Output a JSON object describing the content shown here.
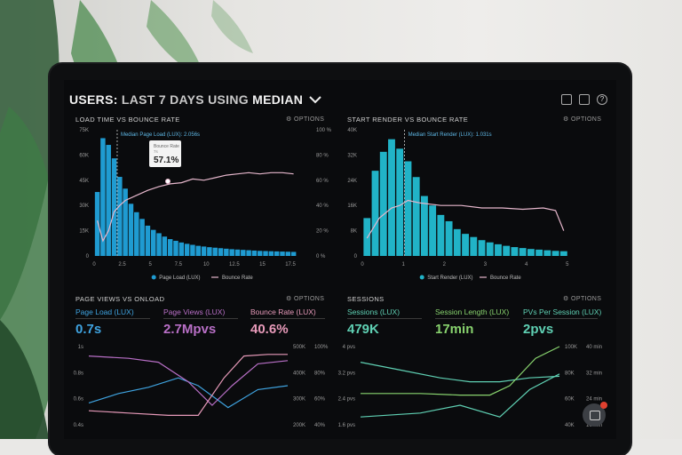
{
  "header": {
    "prefix": "USERS: ",
    "middle": "LAST 7 DAYS ",
    "using": "USING ",
    "metric": "MEDIAN"
  },
  "panels": {
    "load_time": {
      "title": "LOAD TIME VS BOUNCE RATE",
      "options": "OPTIONS",
      "annotation": "Median Page Load (LUX): 2.056s",
      "tooltip_title": "Bounce Rate",
      "tooltip_sub": "7s",
      "tooltip_value": "57.1%",
      "legend_a": "Page Load (LUX)",
      "legend_b": "Bounce Rate"
    },
    "start_render": {
      "title": "START RENDER VS BOUNCE RATE",
      "options": "OPTIONS",
      "annotation": "Median Start Render (LUX): 1.031s",
      "legend_a": "Start Render (LUX)",
      "legend_b": "Bounce Rate"
    },
    "page_views": {
      "title": "PAGE VIEWS VS ONLOAD",
      "options": "OPTIONS",
      "metrics": [
        {
          "label": "Page Load (LUX)",
          "value": "0.7s",
          "color": "#3fa3e0"
        },
        {
          "label": "Page Views (LUX)",
          "value": "2.7Mpvs",
          "color": "#b86fc6"
        },
        {
          "label": "Bounce Rate (LUX)",
          "value": "40.6%",
          "color": "#e79ab9"
        }
      ]
    },
    "sessions": {
      "title": "SESSIONS",
      "options": "OPTIONS",
      "metrics": [
        {
          "label": "Sessions (LUX)",
          "value": "479K",
          "color": "#5fd0b3"
        },
        {
          "label": "Session Length (LUX)",
          "value": "17min",
          "color": "#88d36e"
        },
        {
          "label": "PVs Per Session (LUX)",
          "value": "2pvs",
          "color": "#5fd0b3"
        }
      ]
    }
  },
  "chart_data": [
    {
      "type": "bar",
      "title": "LOAD TIME VS BOUNCE RATE",
      "x_ticks": [
        "0",
        "2.5",
        "5",
        "7.5",
        "10",
        "12.5",
        "15",
        "17.5"
      ],
      "y_left_ticks": [
        "75K",
        "60K",
        "45K",
        "30K",
        "15K",
        "0"
      ],
      "y_right_ticks": [
        "100 %",
        "80 %",
        "60 %",
        "40 %",
        "20 %",
        "0 %"
      ],
      "ylim": [
        0,
        75000
      ],
      "bar_x": [
        0.5,
        1,
        1.5,
        2,
        2.5,
        3,
        3.5,
        4,
        4.5,
        5,
        5.5,
        6,
        6.5,
        7,
        7.5,
        8,
        8.5,
        9,
        9.5,
        10,
        10.5,
        11,
        11.5,
        12,
        12.5,
        13,
        13.5,
        14,
        14.5,
        15,
        15.5,
        16,
        16.5,
        17,
        17.5,
        18
      ],
      "bar_values": [
        38000,
        70000,
        66000,
        58000,
        47000,
        40000,
        31000,
        26000,
        22000,
        18000,
        15500,
        13500,
        11500,
        10000,
        9000,
        8000,
        7200,
        6600,
        6000,
        5600,
        5200,
        4900,
        4600,
        4300,
        4000,
        3800,
        3600,
        3400,
        3200,
        3000,
        2900,
        2800,
        2700,
        2600,
        2500,
        2400
      ],
      "bounce_rate_x": [
        0.5,
        1,
        1.5,
        2,
        2.5,
        3,
        4,
        5,
        6,
        7,
        8,
        9,
        10,
        11,
        12,
        13,
        14,
        15,
        16,
        17,
        18
      ],
      "bounce_rate": [
        28,
        12,
        20,
        35,
        40,
        44,
        48,
        52,
        55,
        57.1,
        58,
        61,
        60,
        62,
        64,
        65,
        66,
        65,
        66,
        66,
        65
      ],
      "series": [
        {
          "name": "Page Load (LUX)"
        },
        {
          "name": "Bounce Rate"
        }
      ]
    },
    {
      "type": "bar",
      "title": "START RENDER VS BOUNCE RATE",
      "x_ticks": [
        "0",
        "1",
        "2",
        "3",
        "4",
        "5"
      ],
      "y_left_ticks": [
        "40K",
        "32K",
        "24K",
        "16K",
        "8K",
        "0"
      ],
      "ylim": [
        0,
        40000
      ],
      "bar_x": [
        0.2,
        0.4,
        0.6,
        0.8,
        1,
        1.2,
        1.4,
        1.6,
        1.8,
        2,
        2.2,
        2.4,
        2.6,
        2.8,
        3,
        3.2,
        3.4,
        3.6,
        3.8,
        4,
        4.2,
        4.4,
        4.6,
        4.8,
        5
      ],
      "bar_values": [
        12000,
        27000,
        33000,
        37000,
        34000,
        30000,
        25000,
        19000,
        16000,
        13000,
        11000,
        8500,
        7000,
        6000,
        5000,
        4300,
        3700,
        3200,
        2800,
        2500,
        2200,
        2000,
        1800,
        1600,
        1500
      ],
      "bounce_rate_x": [
        0.2,
        0.5,
        0.8,
        1,
        1.2,
        1.5,
        2,
        2.5,
        3,
        3.5,
        4,
        4.5,
        4.8,
        5
      ],
      "bounce_rate": [
        14,
        30,
        38,
        40,
        44,
        42,
        40,
        40,
        38,
        38,
        37,
        38,
        36,
        20
      ],
      "series": [
        {
          "name": "Start Render (LUX)"
        },
        {
          "name": "Bounce Rate"
        }
      ]
    },
    {
      "type": "line",
      "title": "PAGE VIEWS VS ONLOAD",
      "y_left_ticks": [
        "1s",
        "0.8s",
        "0.6s",
        "0.4s"
      ],
      "y_right_a": [
        "500K",
        "400K",
        "300K",
        "200K"
      ],
      "y_right_b": [
        "100%",
        "80%",
        "60%",
        "40%"
      ]
    },
    {
      "type": "line",
      "title": "SESSIONS",
      "y_left_ticks": [
        "4 pvs",
        "3.2 pvs",
        "2.4 pvs",
        "1.6 pvs"
      ],
      "y_right_a": [
        "100K",
        "80K",
        "60K",
        "40K"
      ],
      "y_right_b": [
        "40 min",
        "32 min",
        "24 min",
        "16 min"
      ]
    }
  ],
  "colors": {
    "bars": "#1f9bd1",
    "bars2": "#21b3c7",
    "bounce": "#e6b7cc",
    "background": "#0a0b0d"
  },
  "icons": [
    "monitor-icon",
    "image-icon",
    "help-icon",
    "chevron-down-icon",
    "gear-icon",
    "chat-icon"
  ]
}
